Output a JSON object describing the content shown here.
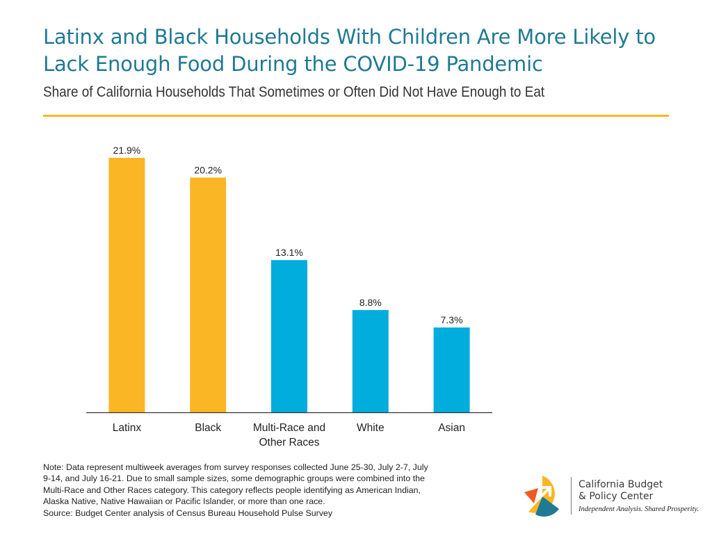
{
  "header": {
    "title_line1": "Latinx and Black Households With Children Are More Likely to",
    "title_line2": "Lack Enough Food During the COVID-19 Pandemic",
    "subtitle": "Share of California Households That Sometimes or Often Did Not Have Enough to Eat"
  },
  "colors": {
    "title": "#1f7a93",
    "highlight_bar": "#fbb625",
    "other_bar": "#00addc",
    "rule": "#fbb625",
    "axis": "#333333"
  },
  "chart_data": {
    "type": "bar",
    "title": "Share of California Households That Sometimes or Often Did Not Have Enough to Eat",
    "categories": [
      "Latinx",
      "Black",
      "Multi-Race and Other Races",
      "White",
      "Asian"
    ],
    "category_label_lines": [
      [
        "Latinx"
      ],
      [
        "Black"
      ],
      [
        "Multi-Race and",
        "Other Races"
      ],
      [
        "White"
      ],
      [
        "Asian"
      ]
    ],
    "values": [
      21.9,
      20.2,
      13.1,
      8.8,
      7.3
    ],
    "data_labels": [
      "21.9%",
      "20.2%",
      "13.1%",
      "8.8%",
      "7.3%"
    ],
    "bar_colors": [
      "#fbb625",
      "#fbb625",
      "#00addc",
      "#00addc",
      "#00addc"
    ],
    "unit": "%",
    "ylim": [
      0,
      21.9
    ],
    "xlabel": "",
    "ylabel": "",
    "grid": false,
    "legend": "none"
  },
  "footnote": {
    "lines": [
      "Note: Data represent multiweek averages from survey responses collected June 25-30, July 2-7, July",
      "9-14, and July 16-21. Due to small sample sizes, some demographic groups were combined into the",
      "Multi-Race and Other Races category. This category reflects people identifying as American Indian,",
      "Alaska Native, Native Hawaiian or Pacific Islander, or more than one race.",
      "Source: Budget Center analysis of Census Bureau Household Pulse Survey"
    ]
  },
  "logo": {
    "name_line1": "California Budget",
    "name_line2": "& Policy Center",
    "tagline": "Independent Analysis. Shared Prosperity."
  }
}
